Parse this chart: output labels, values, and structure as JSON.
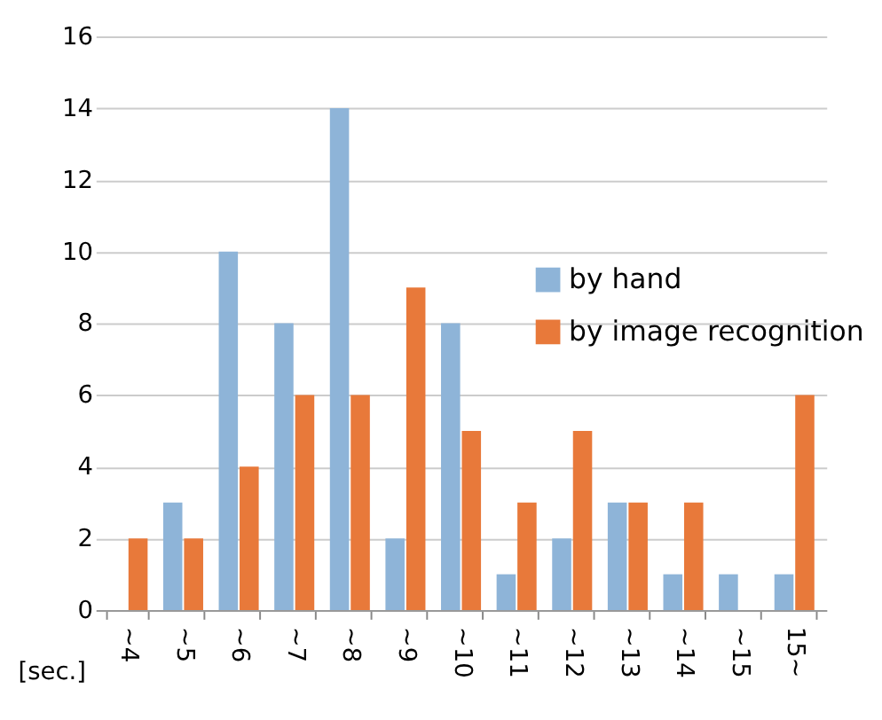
{
  "chart_data": {
    "type": "bar",
    "xlabel": "[sec.]",
    "categories": [
      "~4",
      "~5",
      "~6",
      "~7",
      "~8",
      "~9",
      "~10",
      "~11",
      "~12",
      "~13",
      "~14",
      "~15",
      "15~"
    ],
    "series": [
      {
        "name": "by hand",
        "color": "#8eb4d8",
        "values": [
          0,
          3,
          10,
          8,
          14,
          2,
          8,
          1,
          2,
          3,
          1,
          1,
          1
        ]
      },
      {
        "name": "by image recognition",
        "color": "#e8793a",
        "values": [
          2,
          2,
          4,
          6,
          6,
          9,
          5,
          3,
          5,
          3,
          3,
          0,
          6
        ]
      }
    ],
    "ylim": [
      0,
      16
    ],
    "yticks": [
      0,
      2,
      4,
      6,
      8,
      10,
      12,
      14,
      16
    ],
    "grid": "y",
    "legend": "right"
  }
}
